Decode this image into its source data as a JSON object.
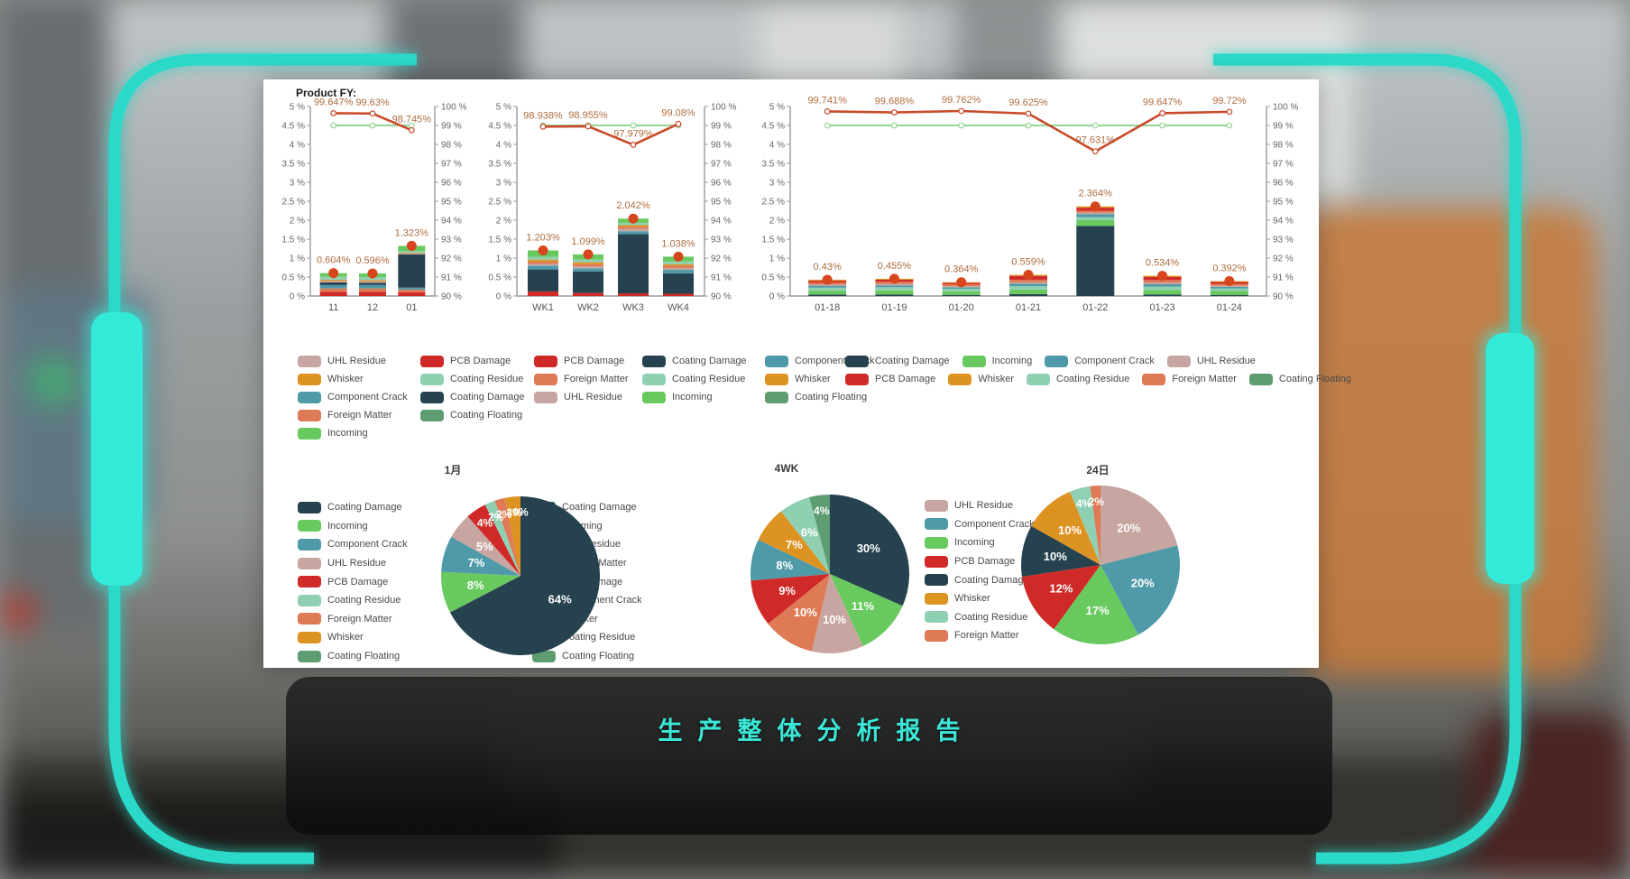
{
  "header": {
    "product_label": "Product FY:"
  },
  "footer": {
    "title": "生产整体分析报告"
  },
  "theme": {
    "accent": "#2bd9c9",
    "accent_bright": "#33ead9",
    "panel_bg": "#ffffff",
    "footer_title_color": "#3be8d8",
    "axis_color": "#9a9a9a",
    "tick_text_color": "#666666",
    "category_text_color": "#555555",
    "value_label_color": "#ae6c3e",
    "legend_text_color": "#4a4a4a",
    "pie_label_color": "#ffffff",
    "dot_color": "#d6451c"
  },
  "palette": {
    "Coating Damage": "#27424f",
    "Incoming": "#67c95e",
    "Component Crack": "#4e9aa8",
    "UHL Residue": "#c7a5a0",
    "PCB Damage": "#cf2a27",
    "Coating Residue": "#90d0b2",
    "Foreign Matter": "#de7a55",
    "Whisker": "#dd9322",
    "Coating Floating": "#5e9c72"
  },
  "axis_ticks": {
    "left": [
      "5 %",
      "4.5 %",
      "4 %",
      "3.5 %",
      "3 %",
      "2.5 %",
      "2 %",
      "1.5 %",
      "1 %",
      "0.5 %",
      "0 %"
    ],
    "right": [
      "100 %",
      "99 %",
      "98 %",
      "97 %",
      "96 %",
      "95 %",
      "94 %",
      "93 %",
      "92 %",
      "91 %",
      "90 %"
    ]
  },
  "chart_data": [
    {
      "id": "monthly-bar",
      "type": "bar-line-combo",
      "categories": [
        "11",
        "12",
        "01"
      ],
      "ylim_left": [
        0,
        5
      ],
      "ylim_right": [
        90,
        100
      ],
      "bar_totals": [
        0.604,
        0.596,
        1.323
      ],
      "bar_total_labels": [
        "0.604%",
        "0.596%",
        "1.323%"
      ],
      "stack_order": [
        "PCB Damage",
        "Foreign Matter",
        "Component Crack",
        "Coating Damage",
        "UHL Residue",
        "Whisker",
        "Coating Residue",
        "Incoming"
      ],
      "stack_values": [
        [
          0.11,
          0.09,
          0.09,
          0.07,
          0.04,
          0.03,
          0.08,
          0.094
        ],
        [
          0.11,
          0.09,
          0.09,
          0.06,
          0.04,
          0.03,
          0.08,
          0.096
        ],
        [
          0.1,
          0.07,
          0.05,
          0.88,
          0.02,
          0.02,
          0.05,
          0.133
        ]
      ],
      "lines": [
        {
          "name": "target-line",
          "color": "#95d593",
          "values": [
            99,
            99,
            99
          ],
          "labels": []
        },
        {
          "name": "yield-line",
          "color": "#c94a2a",
          "values": [
            99.647,
            99.63,
            98.745
          ],
          "labels": [
            "99.647%",
            "99.63%",
            "98.745%"
          ]
        }
      ],
      "legend_rows": [
        [
          "UHL Residue",
          "PCB Damage"
        ],
        [
          "Whisker",
          "Coating Residue"
        ],
        [
          "Component Crack",
          "Coating Damage"
        ],
        [
          "Foreign Matter",
          "Coating Floating"
        ],
        [
          "Incoming"
        ]
      ]
    },
    {
      "id": "weekly-bar",
      "type": "bar-line-combo",
      "categories": [
        "WK1",
        "WK2",
        "WK3",
        "WK4"
      ],
      "ylim_left": [
        0,
        5
      ],
      "ylim_right": [
        90,
        100
      ],
      "bar_totals": [
        1.203,
        1.099,
        2.042,
        1.038
      ],
      "bar_total_labels": [
        "1.203%",
        "1.099%",
        "2.042%",
        "1.038%"
      ],
      "stack_order": [
        "PCB Damage",
        "Coating Damage",
        "Component Crack",
        "UHL Residue",
        "Foreign Matter",
        "Whisker",
        "Coating Residue",
        "Incoming"
      ],
      "stack_values": [
        [
          0.12,
          0.58,
          0.1,
          0.05,
          0.06,
          0.05,
          0.07,
          0.173
        ],
        [
          0.08,
          0.57,
          0.08,
          0.05,
          0.06,
          0.05,
          0.07,
          0.139
        ],
        [
          0.07,
          1.56,
          0.08,
          0.06,
          0.06,
          0.04,
          0.06,
          0.112
        ],
        [
          0.06,
          0.54,
          0.09,
          0.05,
          0.06,
          0.04,
          0.07,
          0.128
        ]
      ],
      "lines": [
        {
          "name": "target-line",
          "color": "#95d593",
          "values": [
            99,
            99,
            99,
            99
          ],
          "labels": []
        },
        {
          "name": "yield-line",
          "color": "#c94a2a",
          "values": [
            98.938,
            98.955,
            97.979,
            99.08
          ],
          "labels": [
            "98.938%",
            "98.955%",
            "97.979%",
            "99.08%"
          ]
        }
      ],
      "legend_rows": [
        [
          "PCB Damage",
          "Coating Damage",
          "Component Crack"
        ],
        [
          "Foreign Matter",
          "Coating Residue",
          "Whisker"
        ],
        [
          "UHL Residue",
          "Incoming",
          "Coating Floating"
        ]
      ]
    },
    {
      "id": "daily-bar",
      "type": "bar-line-combo",
      "categories": [
        "01-18",
        "01-19",
        "01-20",
        "01-21",
        "01-22",
        "01-23",
        "01-24"
      ],
      "ylim_left": [
        0,
        5
      ],
      "ylim_right": [
        90,
        100
      ],
      "bar_totals": [
        0.43,
        0.455,
        0.364,
        0.559,
        2.364,
        0.534,
        0.392
      ],
      "bar_total_labels": [
        "0.43%",
        "0.455%",
        "0.364%",
        "0.559%",
        "2.364%",
        "0.534%",
        "0.392%"
      ],
      "stack_order": [
        "Coating Damage",
        "Incoming",
        "Coating Residue",
        "Component Crack",
        "UHL Residue",
        "Foreign Matter",
        "PCB Damage",
        "Whisker"
      ],
      "stack_values": [
        [
          0.04,
          0.1,
          0.08,
          0.05,
          0.03,
          0.05,
          0.05,
          0.03
        ],
        [
          0.04,
          0.11,
          0.08,
          0.05,
          0.04,
          0.06,
          0.05,
          0.025
        ],
        [
          0.03,
          0.09,
          0.07,
          0.04,
          0.03,
          0.05,
          0.04,
          0.014
        ],
        [
          0.05,
          0.12,
          0.09,
          0.06,
          0.04,
          0.07,
          0.1,
          0.029
        ],
        [
          1.85,
          0.15,
          0.08,
          0.08,
          0.04,
          0.05,
          0.08,
          0.034
        ],
        [
          0.04,
          0.12,
          0.09,
          0.06,
          0.04,
          0.07,
          0.08,
          0.034
        ],
        [
          0.03,
          0.1,
          0.07,
          0.04,
          0.03,
          0.05,
          0.05,
          0.022
        ]
      ],
      "lines": [
        {
          "name": "target-line",
          "color": "#95d593",
          "values": [
            99,
            99,
            99,
            99,
            99,
            99,
            99
          ],
          "labels": []
        },
        {
          "name": "yield-line",
          "color": "#c94a2a",
          "values": [
            99.741,
            99.688,
            99.762,
            99.625,
            97.631,
            99.647,
            99.72
          ],
          "labels": [
            "99.741%",
            "99.688%",
            "99.762%",
            "99.625%",
            "97.631%",
            "99.647%",
            "99.72%"
          ]
        }
      ],
      "legend_rows": [
        [
          "Coating Damage",
          "Incoming",
          "Component Crack",
          "UHL Residue"
        ],
        [
          "PCB Damage",
          "Whisker",
          "Coating Residue",
          "Foreign Matter",
          "Coating Floating"
        ]
      ]
    },
    {
      "id": "pie-month",
      "type": "pie",
      "title": "1月",
      "slices": [
        {
          "name": "Coating Damage",
          "value": 64,
          "label": "64%"
        },
        {
          "name": "Incoming",
          "value": 8,
          "label": "8%"
        },
        {
          "name": "Component Crack",
          "value": 7,
          "label": "7%"
        },
        {
          "name": "UHL Residue",
          "value": 5,
          "label": "5%"
        },
        {
          "name": "PCB Damage",
          "value": 4,
          "label": "4%"
        },
        {
          "name": "Coating Residue",
          "value": 2,
          "label": "2%"
        },
        {
          "name": "Foreign Matter",
          "value": 2,
          "label": "2%"
        },
        {
          "name": "Whisker",
          "value": 3,
          "label": "3%"
        },
        {
          "name": "Coating Floating",
          "value": 0,
          "label": "0%"
        }
      ],
      "legend": [
        "Coating Damage",
        "Incoming",
        "Component Crack",
        "UHL Residue",
        "PCB Damage",
        "Coating Residue",
        "Foreign Matter",
        "Whisker",
        "Coating Floating"
      ]
    },
    {
      "id": "pie-4wk",
      "type": "pie",
      "title": "4WK",
      "slices": [
        {
          "name": "Coating Damage",
          "value": 30,
          "label": "30%"
        },
        {
          "name": "Incoming",
          "value": 11,
          "label": "11%"
        },
        {
          "name": "UHL Residue",
          "value": 10,
          "label": "10%"
        },
        {
          "name": "Foreign Matter",
          "value": 10,
          "label": "10%"
        },
        {
          "name": "PCB Damage",
          "value": 9,
          "label": "9%"
        },
        {
          "name": "Component Crack",
          "value": 8,
          "label": "8%"
        },
        {
          "name": "Whisker",
          "value": 7,
          "label": "7%"
        },
        {
          "name": "Coating Residue",
          "value": 6,
          "label": "6%"
        },
        {
          "name": "Coating Floating",
          "value": 4,
          "label": "4%"
        }
      ],
      "legend": [
        "Coating Damage",
        "Incoming",
        "UHL Residue",
        "Foreign Matter",
        "PCB Damage",
        "Component Crack",
        "Whisker",
        "Coating Residue",
        "Coating Floating"
      ]
    },
    {
      "id": "pie-24day",
      "type": "pie",
      "title": "24日",
      "slices": [
        {
          "name": "UHL Residue",
          "value": 20,
          "label": "20%"
        },
        {
          "name": "Component Crack",
          "value": 20,
          "label": "20%"
        },
        {
          "name": "Incoming",
          "value": 17,
          "label": "17%"
        },
        {
          "name": "PCB Damage",
          "value": 12,
          "label": "12%"
        },
        {
          "name": "Coating Damage",
          "value": 10,
          "label": "10%"
        },
        {
          "name": "Whisker",
          "value": 10,
          "label": "10%"
        },
        {
          "name": "Coating Residue",
          "value": 4,
          "label": "4%"
        },
        {
          "name": "Foreign Matter",
          "value": 2,
          "label": "2%"
        }
      ],
      "legend": [
        "UHL Residue",
        "Component Crack",
        "Incoming",
        "PCB Damage",
        "Coating Damage",
        "Whisker",
        "Coating Residue",
        "Foreign Matter"
      ]
    }
  ]
}
